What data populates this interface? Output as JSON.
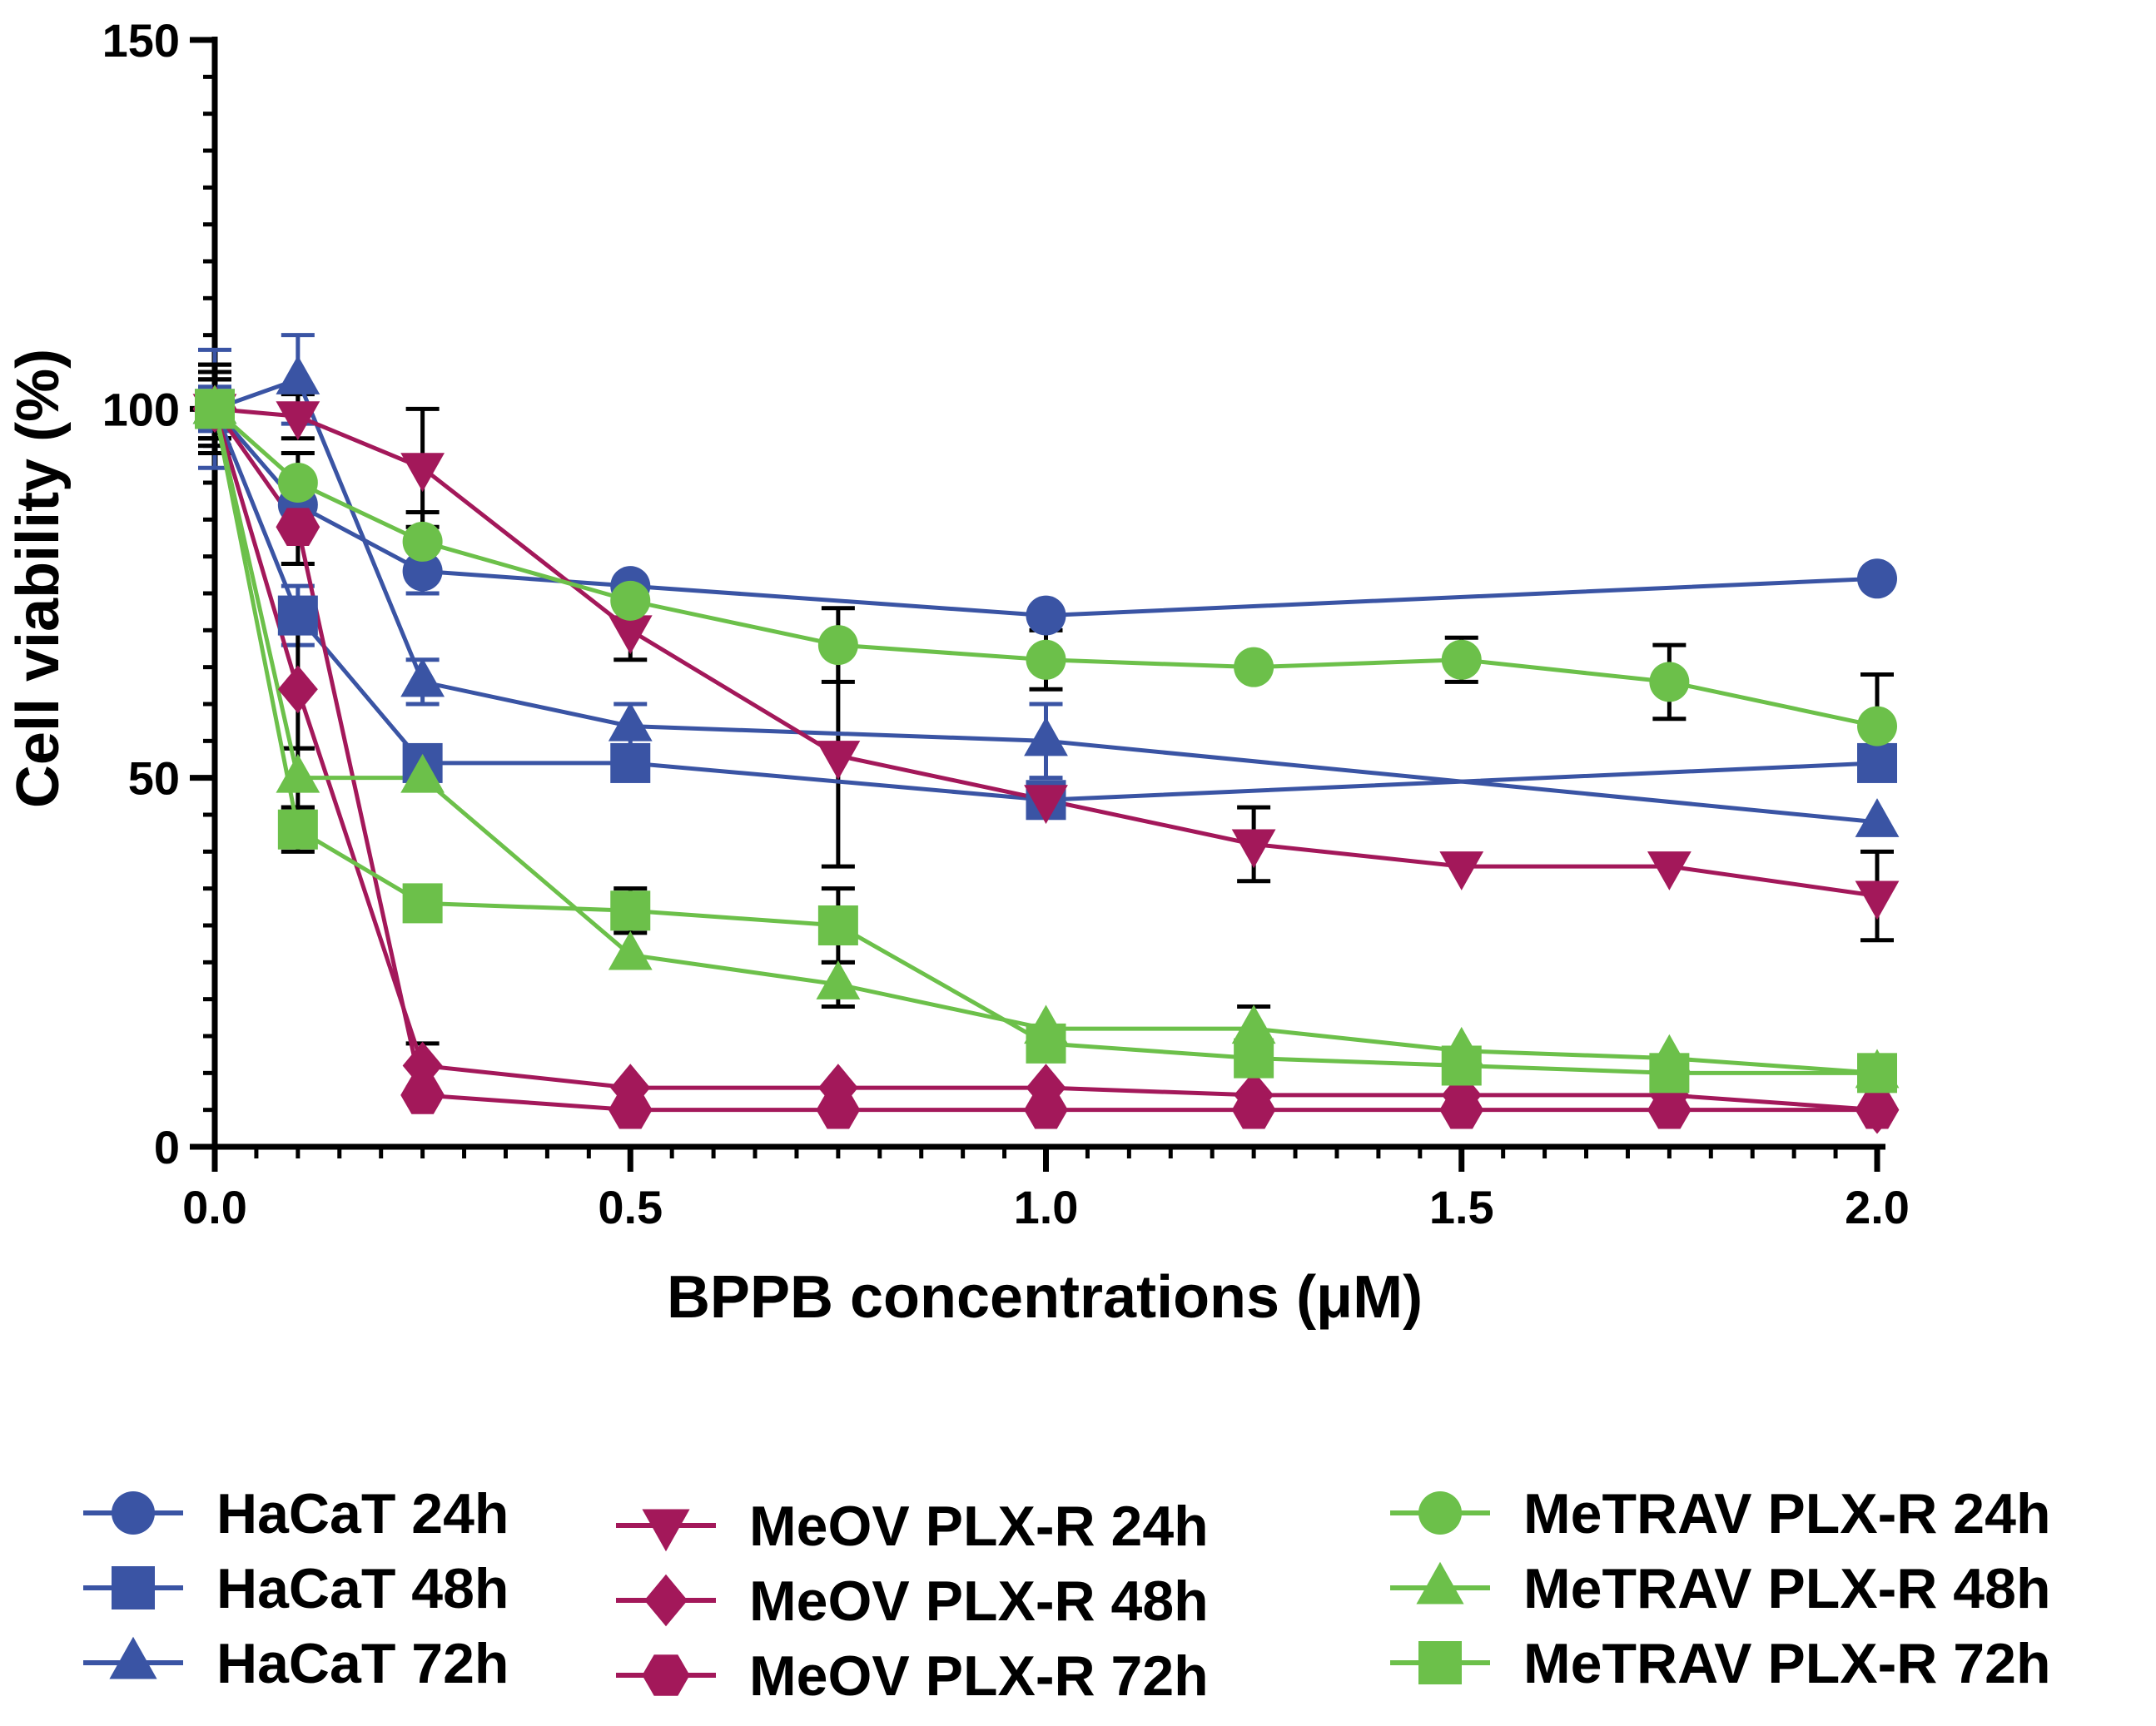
{
  "chart_data": {
    "type": "line",
    "xlabel": "BPPB concentrations (μM)",
    "ylabel": "Cell viability (%)",
    "xlim": [
      0,
      2
    ],
    "ylim": [
      0,
      150
    ],
    "xticks": [
      0,
      0.5,
      1,
      1.5,
      2
    ],
    "xtick_labels": [
      "0.0",
      "0.5",
      "1.0",
      "1.5",
      "2.0"
    ],
    "yticks": [
      0,
      50,
      100,
      150
    ],
    "ytick_labels": [
      "0",
      "50",
      "100",
      "150"
    ],
    "x": [
      0,
      0.1,
      0.25,
      0.5,
      0.75,
      1.0,
      1.25,
      1.5,
      1.75,
      2.0
    ],
    "legend_position": "bottom",
    "series": [
      {
        "name": "HaCaT 24h",
        "color": "#3a54a4",
        "marker": "circle",
        "points": [
          [
            0,
            100,
            8
          ],
          [
            0.1,
            87,
            3
          ],
          [
            0.25,
            78,
            3
          ],
          [
            0.5,
            76,
            null
          ],
          [
            1.0,
            72,
            null
          ],
          [
            2.0,
            77,
            null
          ]
        ]
      },
      {
        "name": "HaCaT 48h",
        "color": "#3a54a4",
        "marker": "square",
        "points": [
          [
            0,
            100,
            5
          ],
          [
            0.1,
            72,
            4
          ],
          [
            0.25,
            52,
            null
          ],
          [
            0.5,
            52,
            null
          ],
          [
            1.0,
            47,
            null
          ],
          [
            2.0,
            52,
            null
          ]
        ]
      },
      {
        "name": "HaCaT 72h",
        "color": "#3a54a4",
        "marker": "triangle-up",
        "points": [
          [
            0,
            100,
            3
          ],
          [
            0.1,
            104,
            6
          ],
          [
            0.25,
            63,
            3
          ],
          [
            0.5,
            57,
            3
          ],
          [
            1.0,
            55,
            5
          ],
          [
            2.0,
            44,
            null
          ]
        ]
      },
      {
        "name": "MeOV PLX-R 24h",
        "color": "#a3185a",
        "marker": "triangle-down",
        "points": [
          [
            0,
            100,
            6
          ],
          [
            0.1,
            99,
            3
          ],
          [
            0.25,
            92,
            8
          ],
          [
            0.5,
            70,
            4
          ],
          [
            0.75,
            53,
            15
          ],
          [
            1.0,
            47,
            null
          ],
          [
            1.25,
            41,
            5
          ],
          [
            1.5,
            38,
            null
          ],
          [
            1.75,
            38,
            null
          ],
          [
            2.0,
            34,
            6
          ]
        ]
      },
      {
        "name": "MeOV PLX-R 48h",
        "color": "#a3185a",
        "marker": "diamond",
        "points": [
          [
            0,
            100,
            5
          ],
          [
            0.1,
            62,
            8
          ],
          [
            0.25,
            11,
            3
          ],
          [
            0.5,
            8,
            null
          ],
          [
            0.75,
            8,
            null
          ],
          [
            1.0,
            8,
            null
          ],
          [
            1.25,
            7,
            null
          ],
          [
            1.5,
            7,
            null
          ],
          [
            1.75,
            7,
            null
          ],
          [
            2.0,
            5,
            null
          ]
        ]
      },
      {
        "name": "MeOV PLX-R 72h",
        "color": "#a3185a",
        "marker": "hexagon",
        "points": [
          [
            0,
            100,
            6
          ],
          [
            0.1,
            84,
            5
          ],
          [
            0.25,
            7,
            null
          ],
          [
            0.5,
            5,
            null
          ],
          [
            0.75,
            5,
            null
          ],
          [
            1.0,
            5,
            null
          ],
          [
            1.25,
            5,
            null
          ],
          [
            1.5,
            5,
            null
          ],
          [
            1.75,
            5,
            null
          ],
          [
            2.0,
            5,
            null
          ]
        ]
      },
      {
        "name": "MeTRAV PLX-R 24h",
        "color": "#6cc04a",
        "marker": "circle",
        "points": [
          [
            0,
            100,
            4
          ],
          [
            0.1,
            90,
            4
          ],
          [
            0.25,
            82,
            4
          ],
          [
            0.5,
            74,
            null
          ],
          [
            0.75,
            68,
            5
          ],
          [
            1.0,
            66,
            4
          ],
          [
            1.25,
            65,
            null
          ],
          [
            1.5,
            66,
            3
          ],
          [
            1.75,
            63,
            5
          ],
          [
            2.0,
            57,
            7
          ]
        ]
      },
      {
        "name": "MeTRAV PLX-R 48h",
        "color": "#6cc04a",
        "marker": "triangle-up",
        "points": [
          [
            0,
            100,
            4
          ],
          [
            0.1,
            50,
            4
          ],
          [
            0.25,
            50,
            null
          ],
          [
            0.5,
            26,
            null
          ],
          [
            0.75,
            22,
            3
          ],
          [
            1.0,
            16,
            null
          ],
          [
            1.25,
            16,
            3
          ],
          [
            1.5,
            13,
            null
          ],
          [
            1.75,
            12,
            null
          ],
          [
            2.0,
            10,
            null
          ]
        ]
      },
      {
        "name": "MeTRAV PLX-R 72h",
        "color": "#6cc04a",
        "marker": "square",
        "points": [
          [
            0,
            100,
            4
          ],
          [
            0.1,
            43,
            3
          ],
          [
            0.25,
            33,
            null
          ],
          [
            0.5,
            32,
            3
          ],
          [
            0.75,
            30,
            5
          ],
          [
            1.0,
            14,
            null
          ],
          [
            1.25,
            12,
            null
          ],
          [
            1.5,
            11,
            null
          ],
          [
            1.75,
            10,
            null
          ],
          [
            2.0,
            10,
            null
          ]
        ]
      }
    ]
  }
}
